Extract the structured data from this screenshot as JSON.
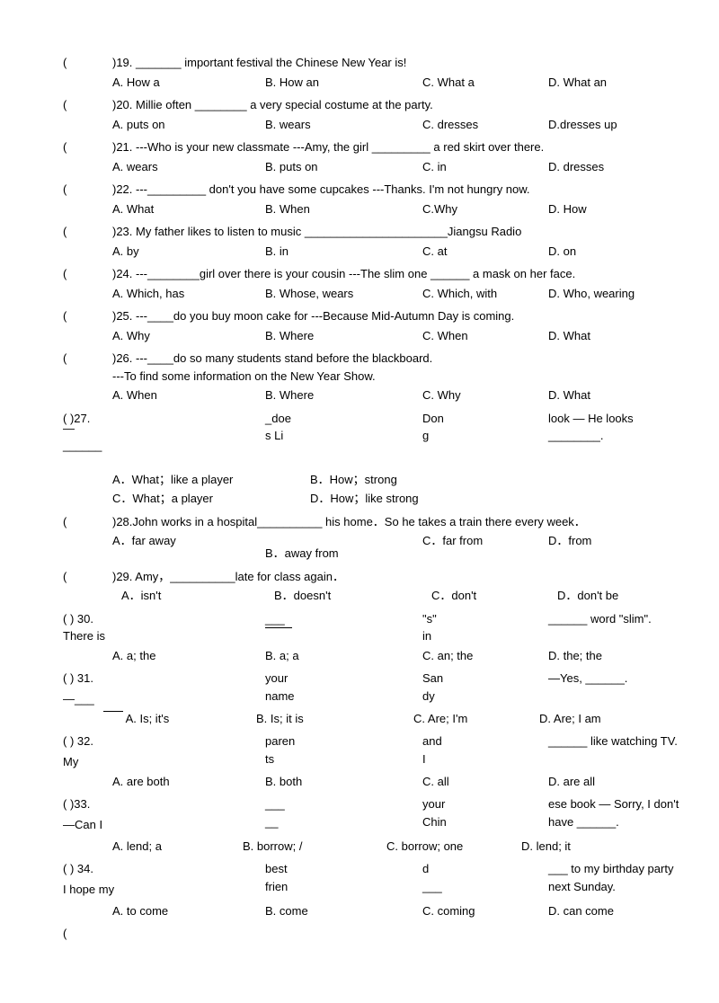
{
  "questions": [
    {
      "n": "19",
      "stem": "_______ important festival the Chinese New Year is!",
      "A": "A. How a",
      "B": "B. How an",
      "C": "C. What a",
      "D": "D. What an"
    },
    {
      "n": "20",
      "stem": "Millie often ________ a very special costume at the party.",
      "A": "A. puts on",
      "B": "B. wears",
      "C": "C. dresses",
      "D": "D.dresses up"
    },
    {
      "n": "21",
      "stem": "---Who is your new classmate ---Amy, the girl _________ a red skirt over there.",
      "A": "A. wears",
      "B": "B. puts on",
      "C": "C. in",
      "D": "D. dresses"
    },
    {
      "n": "22",
      "stem": "---_________ don't you have some cupcakes ---Thanks. I'm not hungry now.",
      "A": "A. What",
      "B": "B. When",
      "C": "C.Why",
      "D": "D. How"
    },
    {
      "n": "23",
      "stem": "My father likes to listen to music ______________________Jiangsu Radio",
      "A": "A. by",
      "B": "B. in",
      "C": "C. at",
      "D": "D. on"
    },
    {
      "n": "24",
      "stem": "---________girl over there is your cousin ---The slim one ______ a mask on her face.",
      "A": "A. Which, has",
      "B": "B. Whose, wears",
      "C": "C. Which, with",
      "D": "D. Who, wearing"
    },
    {
      "n": "25",
      "stem": "---____do you buy moon cake for ---Because Mid-Autumn Day is coming.",
      "A": "A.   Why",
      "B": "B. Where",
      "C": "C. When",
      "D": "D. What"
    },
    {
      "n": "26",
      "stem": "---____do so many students stand before the blackboard.",
      "cont": "---To find some information on the New Year Show.",
      "A": "A. When",
      "B": "B. Where",
      "C": "C. Why",
      "D": "D. What"
    }
  ],
  "q27": {
    "paren": "(     )27.",
    "f1": "—______",
    "f2": "_doe\ns Li",
    "f3": "Don\ng",
    "f4": "look  — He looks\n________.",
    "A": "A．What；like a player",
    "B": "B．How；strong",
    "C": "C．What；a player",
    "D": "D．How；like strong"
  },
  "q28": {
    "paren": "(",
    "n": ")28.",
    "stem": "John works in a hospital__________ his home．So he takes a train there every week．",
    "A": "A．far away",
    "B": "B．away from",
    "C": "C．far from",
    "D": "D．from"
  },
  "q29": {
    "paren": "(",
    "n": ")29.",
    "stem": " Amy，__________late for class again．",
    "A": "A．isn't",
    "B": "B．doesn't",
    "C": "C．don't",
    "D": "D．don't be"
  },
  "q30": {
    "row1a": "(      ) 30.",
    "row1b": "___",
    "row1c": "\"s\"",
    "row1d": "______ word \"slim\".",
    "row2a": "There is",
    "row2c": "in",
    "A": "A. a; the",
    "B": "B. a; a",
    "C": "C. an; the",
    "D": "D. the; the"
  },
  "q31": {
    "row1a": "(      ) 31.",
    "row1b": "your\nname",
    "row1c": "San\ndy",
    "row1d": "—Yes, ______.",
    "row2a": "—___",
    "A": "A. Is; it's",
    "B": "B. Is; it is",
    "C": "C. Are; I'm",
    "D": "D. Are; I am"
  },
  "q32": {
    "row1a": "(      ) 32.",
    "row1b": "paren\nts",
    "row1c": "and\nI",
    "row1d": "______ like watching TV.",
    "row2a": "My",
    "A": "A. are both",
    "B": "B. both",
    "C": "C. all",
    "D": "D. are all"
  },
  "q33": {
    "row1a": "(      )33.",
    "row1b": "___\n__",
    "row1c": "your\nChin",
    "row1d": "ese book — Sorry, I don't\nhave ______.",
    "row2a": "—Can I",
    "A": "A. lend; a",
    "B": "B. borrow; /",
    "C": "C. borrow; one",
    "D": "D. lend; it"
  },
  "q34": {
    "row1a": "(      ) 34.",
    "row1b": "best\nfrien",
    "row1c": "d\n___",
    "row1d": "___ to my birthday party\nnext Sunday.",
    "row2a": "I hope my",
    "A": "A. to come",
    "B": "B. come",
    "C": "C. coming",
    "D": "D. can come"
  },
  "lastParen": "("
}
